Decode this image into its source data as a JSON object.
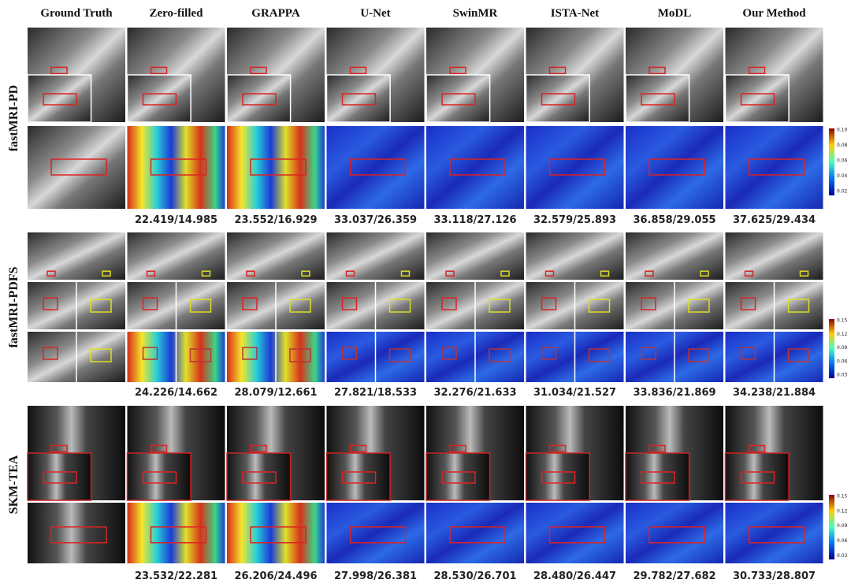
{
  "columns": [
    "Ground Truth",
    "Zero-filled",
    "GRAPPA",
    "U-Net",
    "SwinMR",
    "ISTA-Net",
    "MoDL",
    "Our Method"
  ],
  "rows": [
    {
      "label": "fastMRI-PD",
      "metrics": [
        "22.419/14.985",
        "23.552/16.929",
        "33.037/26.359",
        "33.118/27.126",
        "32.579/25.893",
        "36.858/29.055",
        "37.625/29.434"
      ],
      "colorbar": [
        "0.10",
        "0.08",
        "0.06",
        "0.04",
        "0.02"
      ]
    },
    {
      "label": "fastMRI-PDFS",
      "metrics": [
        "24.226/14.662",
        "28.079/12.661",
        "27.821/18.533",
        "32.276/21.633",
        "31.034/21.527",
        "33.836/21.869",
        "34.238/21.884"
      ],
      "colorbar": [
        "0.15",
        "0.12",
        "0.09",
        "0.06",
        "0.03"
      ]
    },
    {
      "label": "SKM-TEA",
      "metrics": [
        "23.532/22.281",
        "26.206/24.496",
        "27.998/26.381",
        "28.530/26.701",
        "28.480/26.447",
        "29.782/27.682",
        "30.733/28.807"
      ],
      "colorbar": [
        "0.15",
        "0.12",
        "0.09",
        "0.06",
        "0.03"
      ]
    }
  ]
}
